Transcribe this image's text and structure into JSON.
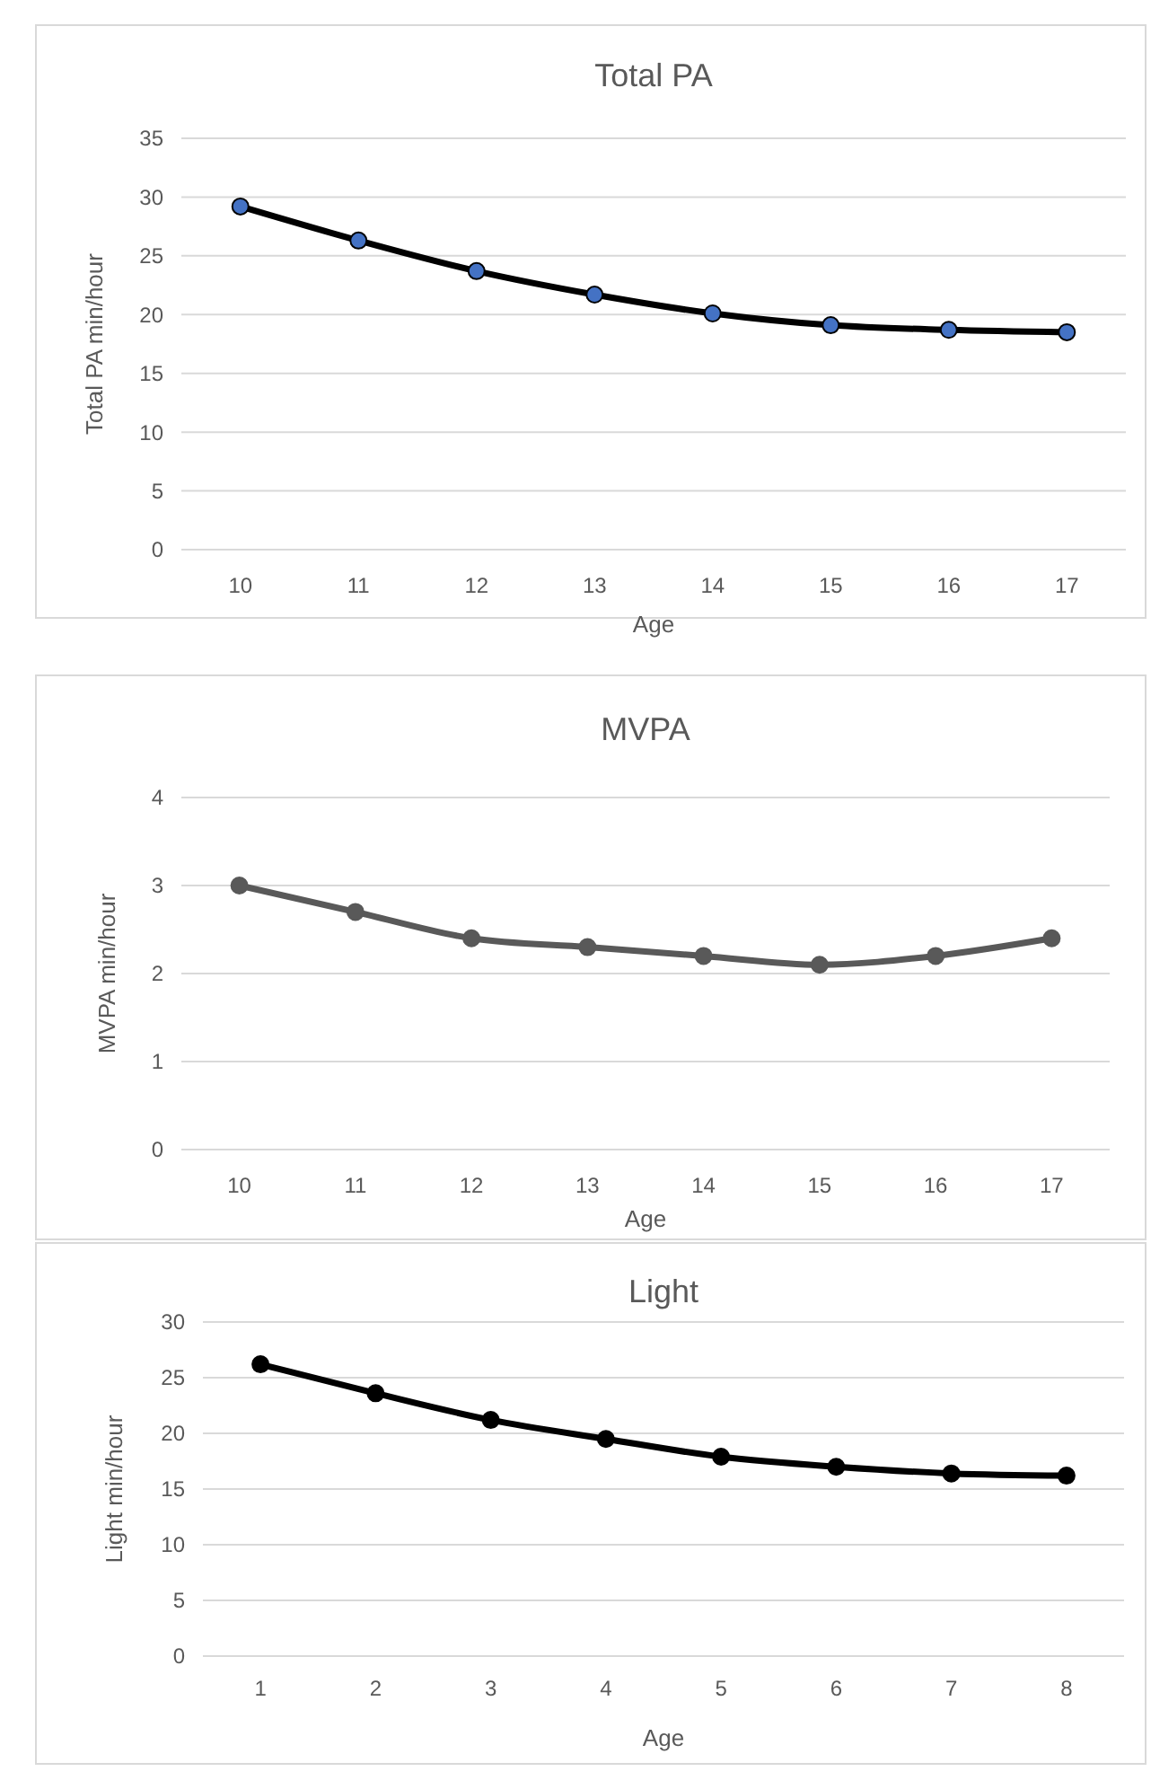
{
  "chart_data": [
    {
      "type": "line",
      "title": "Total PA",
      "xlabel": "Age",
      "ylabel": "Total PA min/hour",
      "categories": [
        "10",
        "11",
        "12",
        "13",
        "14",
        "15",
        "16",
        "17"
      ],
      "series": [
        {
          "color": "#000000",
          "colors": [
            "#4472c4",
            "#4472c4",
            "#4472c4",
            "#4472c4",
            "#4472c4",
            "#4472c4",
            "#4472c4",
            "#4472c4"
          ],
          "values": [
            29.2,
            26.3,
            23.7,
            21.7,
            20.1,
            19.1,
            18.7,
            18.5
          ]
        }
      ],
      "ylim": [
        0,
        35
      ],
      "yticks": [
        0,
        5,
        10,
        15,
        20,
        25,
        30,
        35
      ],
      "grid": "y",
      "marker": "circle"
    },
    {
      "type": "line",
      "title": "MVPA",
      "xlabel": "Age",
      "ylabel": "MVPA min/hour",
      "categories": [
        "10",
        "11",
        "12",
        "13",
        "14",
        "15",
        "16",
        "17"
      ],
      "series": [
        {
          "color": "#595959",
          "values": [
            3.0,
            2.7,
            2.4,
            2.3,
            2.2,
            2.1,
            2.2,
            2.4
          ]
        }
      ],
      "ylim": [
        0,
        4
      ],
      "yticks": [
        0,
        1,
        2,
        3,
        4
      ],
      "grid": "y",
      "marker": "circle"
    },
    {
      "type": "line",
      "title": "Light",
      "xlabel": "Age",
      "ylabel": "Light min/hour",
      "categories": [
        "1",
        "2",
        "3",
        "4",
        "5",
        "6",
        "7",
        "8"
      ],
      "series": [
        {
          "color": "#000000",
          "values": [
            26.2,
            23.6,
            21.2,
            19.5,
            17.9,
            17.0,
            16.4,
            16.2
          ]
        }
      ],
      "ylim": [
        0,
        30
      ],
      "yticks": [
        0,
        5,
        10,
        15,
        20,
        25,
        30
      ],
      "grid": "y",
      "marker": "circle"
    }
  ]
}
